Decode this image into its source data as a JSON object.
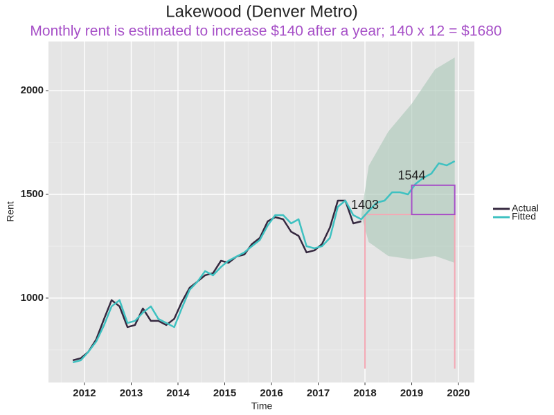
{
  "chart_data": {
    "type": "line",
    "title": "Lakewood (Denver Metro)",
    "subtitle": "Monthly rent is estimated to increase $140 after a year; 140 x 12 = $1680",
    "xlabel": "Time",
    "ylabel": "Rent",
    "x": [
      2011.75,
      2011.92,
      2012.08,
      2012.25,
      2012.42,
      2012.58,
      2012.75,
      2012.92,
      2013.08,
      2013.25,
      2013.42,
      2013.58,
      2013.75,
      2013.92,
      2014.08,
      2014.25,
      2014.42,
      2014.58,
      2014.75,
      2014.92,
      2015.08,
      2015.25,
      2015.42,
      2015.58,
      2015.75,
      2015.92,
      2016.08,
      2016.25,
      2016.42,
      2016.58,
      2016.75,
      2016.92,
      2017.08,
      2017.25,
      2017.42,
      2017.58,
      2017.75,
      2017.92,
      2018.08,
      2018.25,
      2018.42,
      2018.58,
      2018.75,
      2018.92,
      2019.08,
      2019.25,
      2019.42,
      2019.58,
      2019.75,
      2019.92
    ],
    "series": [
      {
        "name": "Actual",
        "color": "#35283f",
        "values": [
          700,
          710,
          740,
          800,
          900,
          990,
          960,
          860,
          870,
          950,
          890,
          890,
          870,
          900,
          980,
          1050,
          1080,
          1110,
          1120,
          1180,
          1170,
          1200,
          1210,
          1260,
          1290,
          1370,
          1390,
          1380,
          1320,
          1300,
          1220,
          1230,
          1260,
          1340,
          1470,
          1470,
          1360,
          1370,
          null,
          null,
          null,
          null,
          null,
          null,
          null,
          null,
          null,
          null,
          null,
          null
        ]
      },
      {
        "name": "Fitted",
        "color": "#3ec1c1",
        "values": [
          690,
          700,
          740,
          790,
          870,
          960,
          990,
          880,
          890,
          930,
          960,
          900,
          880,
          860,
          950,
          1040,
          1080,
          1130,
          1110,
          1150,
          1180,
          1200,
          1220,
          1250,
          1280,
          1350,
          1400,
          1400,
          1360,
          1380,
          1250,
          1240,
          1250,
          1290,
          1440,
          1470,
          1400,
          1380,
          1420,
          1460,
          1470,
          1510,
          1510,
          1500,
          1550,
          1580,
          1600,
          1650,
          1640,
          1660
        ]
      }
    ],
    "band": {
      "color": "#a9c7b6",
      "x": [
        2017.92,
        2018.08,
        2018.5,
        2019.0,
        2019.5,
        2019.92
      ],
      "lower": [
        1400,
        1270,
        1203,
        1187,
        1203,
        1170
      ],
      "upper": [
        1400,
        1637,
        1803,
        1937,
        2103,
        2160
      ]
    },
    "annotations": [
      {
        "text": "1403",
        "x": 2018,
        "y": 1403
      },
      {
        "text": "1544",
        "x": 2019,
        "y": 1544
      }
    ],
    "guide_lines": {
      "color": "#f4a8b4",
      "x": [
        2018,
        2019.92
      ],
      "y": 1403,
      "base": 660
    },
    "box": {
      "color": "#a64fc7",
      "x": [
        2019,
        2019.92
      ],
      "y": [
        1403,
        1544
      ]
    },
    "xlim": [
      2011.23,
      2020.34
    ],
    "ylim": [
      593,
      2237
    ],
    "xticks": [
      2012,
      2013,
      2014,
      2015,
      2016,
      2017,
      2018,
      2019,
      2020
    ],
    "yticks": [
      1000,
      1500,
      2000
    ],
    "xminor": [
      2011.5,
      2012.5,
      2013.5,
      2014.5,
      2015.5,
      2016.5,
      2017.5,
      2018.5,
      2019.5
    ],
    "yminor": [
      750,
      1250,
      1750
    ],
    "grid": true,
    "legend": "right"
  }
}
